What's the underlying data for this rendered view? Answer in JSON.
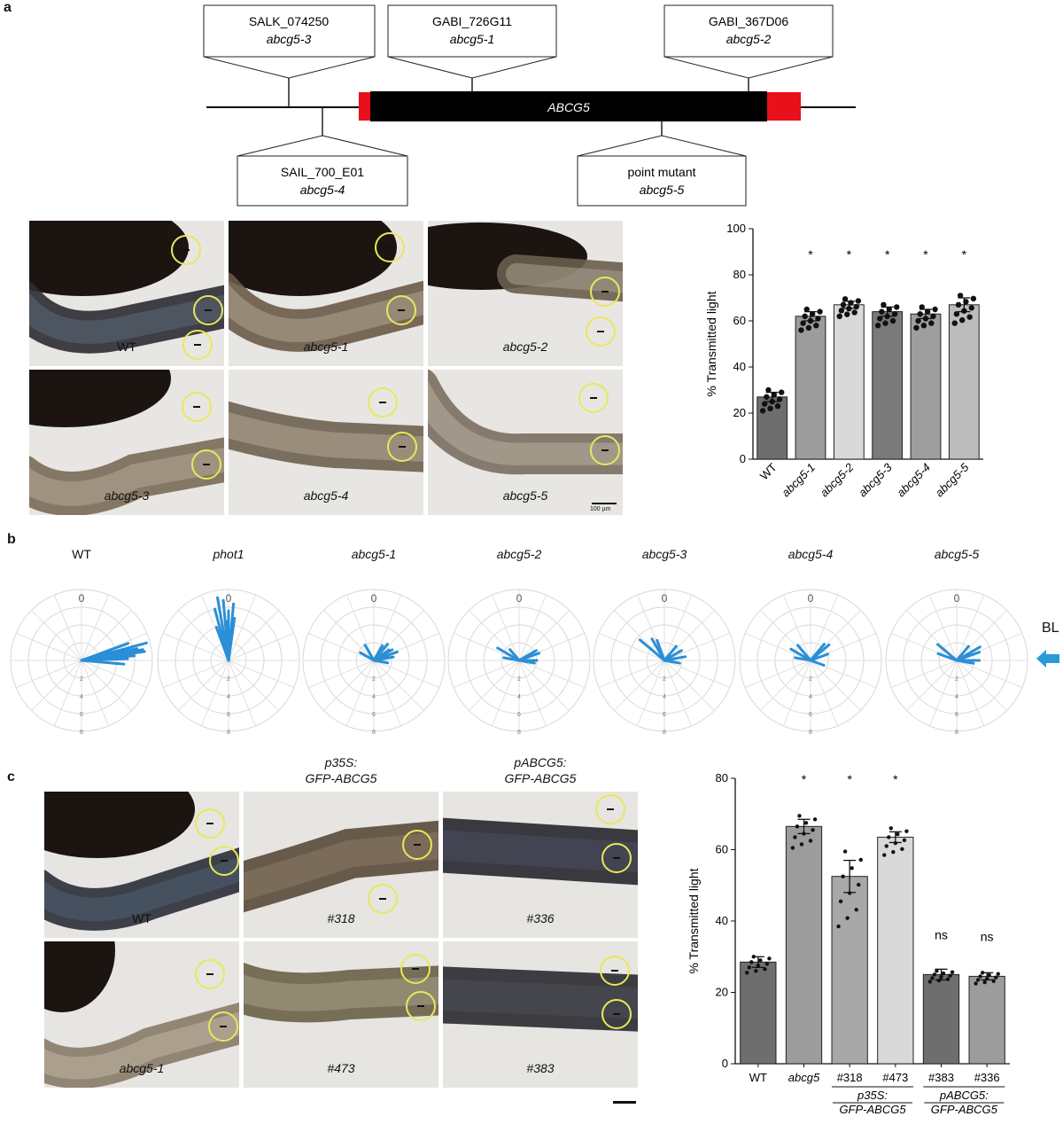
{
  "panels": {
    "a": "a",
    "b": "b",
    "c": "c"
  },
  "gene_diagram": {
    "gene_label": "ABCG5",
    "alleles_top": [
      {
        "line1": "SALK_074250",
        "line2": "abcg5-3"
      },
      {
        "line1": "GABI_726G11",
        "line2": "abcg5-1"
      },
      {
        "line1": "GABI_367D06",
        "line2": "abcg5-2"
      }
    ],
    "alleles_bottom": [
      {
        "line1": "SAIL_700_E01",
        "line2": "abcg5-4"
      },
      {
        "line1": "point mutant",
        "line2": "abcg5-5"
      }
    ],
    "colors": {
      "utr": "#e8101a",
      "cds": "#000000"
    }
  },
  "micro_a": {
    "labels": [
      "WT",
      "abcg5-1",
      "abcg5-2",
      "abcg5-3",
      "abcg5-4",
      "abcg5-5"
    ],
    "scale_bar": "100 µm"
  },
  "micro_c": {
    "col_headers": [
      {
        "line1": "p35S:",
        "line2": "GFP-ABCG5"
      },
      {
        "line1": "pABCG5:",
        "line2": "GFP-ABCG5"
      }
    ],
    "labels": [
      "WT",
      "#318",
      "#336",
      "abcg5-1",
      "#473",
      "#383"
    ]
  },
  "polar": {
    "titles": [
      "WT",
      "phot1",
      "abcg5-1",
      "abcg5-2",
      "abcg5-3",
      "abcg5-4",
      "abcg5-5"
    ],
    "top_label": "0",
    "radial_ticks": [
      "2",
      "4",
      "6",
      "8"
    ],
    "bl_label": "BL",
    "arrow_color": "#2a9bd8",
    "line_color": "#2a8fd6"
  },
  "chart_data": [
    {
      "type": "bar",
      "panel": "a",
      "categories": [
        "WT",
        "abcg5-1",
        "abcg5-2",
        "abcg5-3",
        "abcg5-4",
        "abcg5-5"
      ],
      "values": [
        27,
        62,
        67,
        64,
        63,
        67
      ],
      "errors": [
        2,
        2,
        1.5,
        2,
        2,
        3
      ],
      "significance": [
        "",
        "*",
        "*",
        "*",
        "*",
        "*"
      ],
      "ylabel": "% Transmitted light",
      "ylim": [
        0,
        100
      ],
      "yticks": [
        "0",
        "20",
        "40",
        "60",
        "80",
        "100"
      ],
      "bar_colors": [
        "#6e6e6e",
        "#9c9c9c",
        "#d9d9d9",
        "#7a7a7a",
        "#9e9e9e",
        "#bcbcbc"
      ]
    },
    {
      "type": "bar",
      "panel": "c",
      "categories": [
        "WT",
        "abcg5",
        "#318",
        "#473",
        "#383",
        "#336"
      ],
      "values": [
        28.5,
        66.5,
        52.5,
        63.5,
        25,
        24.5
      ],
      "errors": [
        1.5,
        2,
        4.5,
        1.5,
        1.5,
        1
      ],
      "significance": [
        "",
        "*",
        "*",
        "*",
        "ns",
        "ns"
      ],
      "group_labels": [
        {
          "line1": "p35S:",
          "line2": "GFP-ABCG5"
        },
        {
          "line1": "pABCG5:",
          "line2": "GFP-ABCG5"
        }
      ],
      "ylabel": "% Transmitted light",
      "ylim": [
        0,
        80
      ],
      "yticks": [
        "0",
        "20",
        "40",
        "60",
        "80"
      ],
      "bar_colors": [
        "#6e6e6e",
        "#9c9c9c",
        "#a8a8a8",
        "#d9d9d9",
        "#6e6e6e",
        "#9c9c9c"
      ]
    }
  ]
}
